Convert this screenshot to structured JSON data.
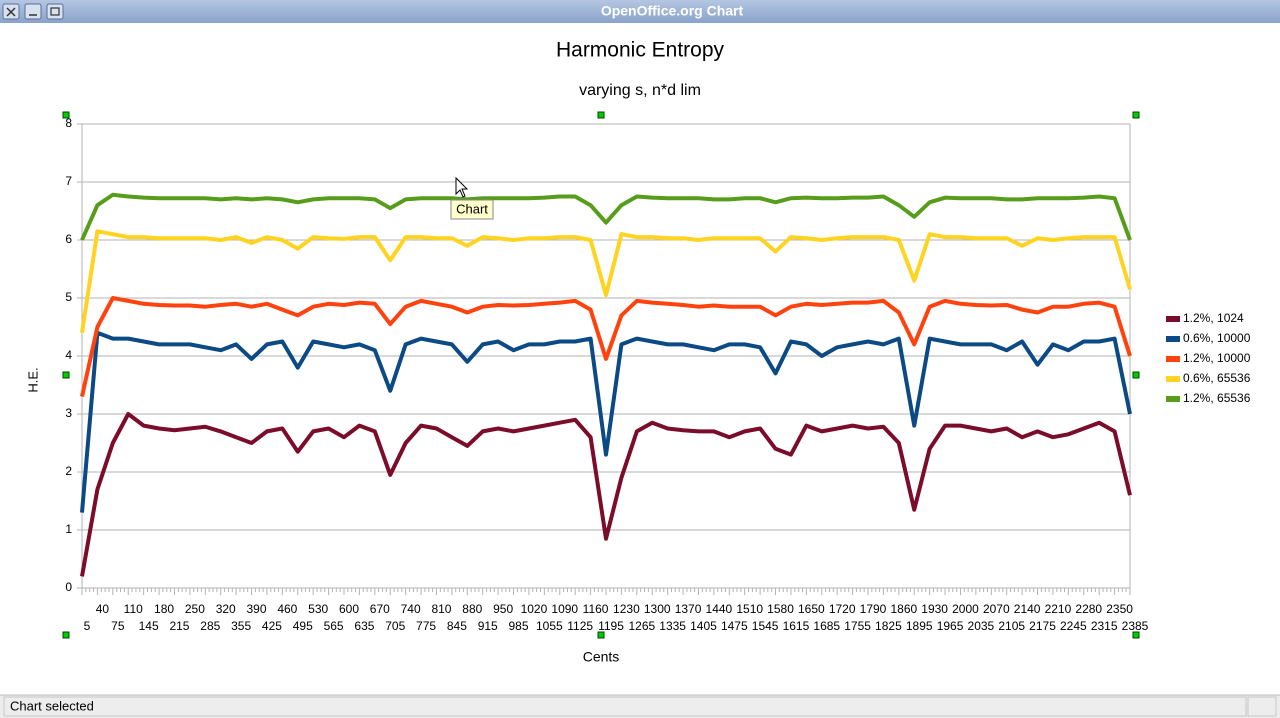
{
  "window": {
    "title": "OpenOffice.org Chart"
  },
  "tooltip": "Chart",
  "status": "Chart selected",
  "chart_data": {
    "type": "line",
    "title": "Harmonic Entropy",
    "subtitle": "varying s, n*d lim",
    "xlabel": "Cents",
    "ylabel": "H.E.",
    "categories": [
      5,
      40,
      75,
      110,
      145,
      180,
      215,
      250,
      285,
      320,
      355,
      390,
      425,
      460,
      495,
      530,
      565,
      600,
      635,
      670,
      705,
      740,
      775,
      810,
      845,
      880,
      915,
      950,
      985,
      1020,
      1055,
      1090,
      1125,
      1160,
      1195,
      1230,
      1265,
      1300,
      1335,
      1370,
      1405,
      1440,
      1475,
      1510,
      1545,
      1580,
      1615,
      1650,
      1685,
      1720,
      1755,
      1790,
      1825,
      1860,
      1895,
      1930,
      1965,
      2000,
      2035,
      2070,
      2105,
      2140,
      2175,
      2210,
      2245,
      2280,
      2315,
      2350,
      2385
    ],
    "series": [
      {
        "name": "1.2%, 1024",
        "color": "#7b0c2a",
        "values": [
          0.2,
          1.7,
          2.5,
          3.0,
          2.8,
          2.75,
          2.72,
          2.75,
          2.78,
          2.7,
          2.6,
          2.5,
          2.7,
          2.75,
          2.35,
          2.7,
          2.75,
          2.6,
          2.8,
          2.7,
          1.95,
          2.5,
          2.8,
          2.75,
          2.6,
          2.45,
          2.7,
          2.75,
          2.7,
          2.75,
          2.8,
          2.85,
          2.9,
          2.6,
          0.85,
          1.9,
          2.7,
          2.85,
          2.75,
          2.72,
          2.7,
          2.7,
          2.6,
          2.7,
          2.75,
          2.4,
          2.3,
          2.8,
          2.7,
          2.75,
          2.8,
          2.75,
          2.78,
          2.5,
          1.35,
          2.4,
          2.8,
          2.8,
          2.75,
          2.7,
          2.75,
          2.6,
          2.7,
          2.6,
          2.65,
          2.75,
          2.85,
          2.7,
          1.6
        ]
      },
      {
        "name": "0.6%, 10000",
        "color": "#0b4a84",
        "values": [
          1.3,
          4.4,
          4.3,
          4.3,
          4.25,
          4.2,
          4.2,
          4.2,
          4.15,
          4.1,
          4.2,
          3.95,
          4.2,
          4.25,
          3.8,
          4.25,
          4.2,
          4.15,
          4.2,
          4.1,
          3.4,
          4.2,
          4.3,
          4.25,
          4.2,
          3.9,
          4.2,
          4.25,
          4.1,
          4.2,
          4.2,
          4.25,
          4.25,
          4.3,
          2.3,
          4.2,
          4.3,
          4.25,
          4.2,
          4.2,
          4.15,
          4.1,
          4.2,
          4.2,
          4.15,
          3.7,
          4.25,
          4.2,
          4.0,
          4.15,
          4.2,
          4.25,
          4.2,
          4.3,
          2.8,
          4.3,
          4.25,
          4.2,
          4.2,
          4.2,
          4.1,
          4.25,
          3.85,
          4.2,
          4.1,
          4.25,
          4.25,
          4.3,
          3.0
        ]
      },
      {
        "name": "1.2%, 10000",
        "color": "#ff420e",
        "values": [
          3.3,
          4.5,
          5.0,
          4.95,
          4.9,
          4.88,
          4.87,
          4.87,
          4.85,
          4.88,
          4.9,
          4.85,
          4.9,
          4.8,
          4.7,
          4.85,
          4.9,
          4.88,
          4.92,
          4.9,
          4.55,
          4.85,
          4.95,
          4.9,
          4.85,
          4.75,
          4.85,
          4.88,
          4.87,
          4.88,
          4.9,
          4.92,
          4.95,
          4.8,
          3.95,
          4.7,
          4.95,
          4.92,
          4.9,
          4.88,
          4.85,
          4.87,
          4.85,
          4.85,
          4.85,
          4.7,
          4.85,
          4.9,
          4.88,
          4.9,
          4.92,
          4.92,
          4.95,
          4.75,
          4.2,
          4.85,
          4.95,
          4.9,
          4.88,
          4.87,
          4.88,
          4.8,
          4.75,
          4.85,
          4.85,
          4.9,
          4.92,
          4.85,
          4.0
        ]
      },
      {
        "name": "0.6%, 65536",
        "color": "#ffd320",
        "values": [
          4.4,
          6.15,
          6.1,
          6.05,
          6.05,
          6.03,
          6.03,
          6.03,
          6.03,
          6.0,
          6.05,
          5.95,
          6.05,
          6.0,
          5.85,
          6.05,
          6.03,
          6.02,
          6.05,
          6.05,
          5.65,
          6.05,
          6.05,
          6.03,
          6.03,
          5.9,
          6.05,
          6.03,
          6.0,
          6.03,
          6.03,
          6.05,
          6.05,
          6.0,
          5.05,
          6.1,
          6.05,
          6.05,
          6.03,
          6.03,
          6.0,
          6.03,
          6.03,
          6.03,
          6.03,
          5.8,
          6.05,
          6.03,
          6.0,
          6.03,
          6.05,
          6.05,
          6.05,
          6.0,
          5.3,
          6.1,
          6.05,
          6.05,
          6.03,
          6.03,
          6.03,
          5.9,
          6.03,
          6.0,
          6.03,
          6.05,
          6.05,
          6.05,
          5.15
        ]
      },
      {
        "name": "1.2%, 65536",
        "color": "#579d1c",
        "values": [
          6.0,
          6.6,
          6.78,
          6.75,
          6.73,
          6.72,
          6.72,
          6.72,
          6.72,
          6.7,
          6.72,
          6.7,
          6.72,
          6.7,
          6.65,
          6.7,
          6.72,
          6.72,
          6.72,
          6.7,
          6.55,
          6.7,
          6.72,
          6.72,
          6.72,
          6.7,
          6.72,
          6.72,
          6.72,
          6.72,
          6.73,
          6.75,
          6.75,
          6.6,
          6.3,
          6.6,
          6.75,
          6.73,
          6.72,
          6.72,
          6.72,
          6.7,
          6.7,
          6.72,
          6.72,
          6.65,
          6.72,
          6.73,
          6.72,
          6.72,
          6.73,
          6.73,
          6.75,
          6.6,
          6.4,
          6.65,
          6.73,
          6.72,
          6.72,
          6.72,
          6.7,
          6.7,
          6.72,
          6.72,
          6.72,
          6.73,
          6.75,
          6.72,
          6.0
        ]
      }
    ],
    "ylim": [
      0,
      8
    ],
    "yticks": [
      0,
      1,
      2,
      3,
      4,
      5,
      6,
      7,
      8
    ],
    "grid": true,
    "legend": "right"
  }
}
